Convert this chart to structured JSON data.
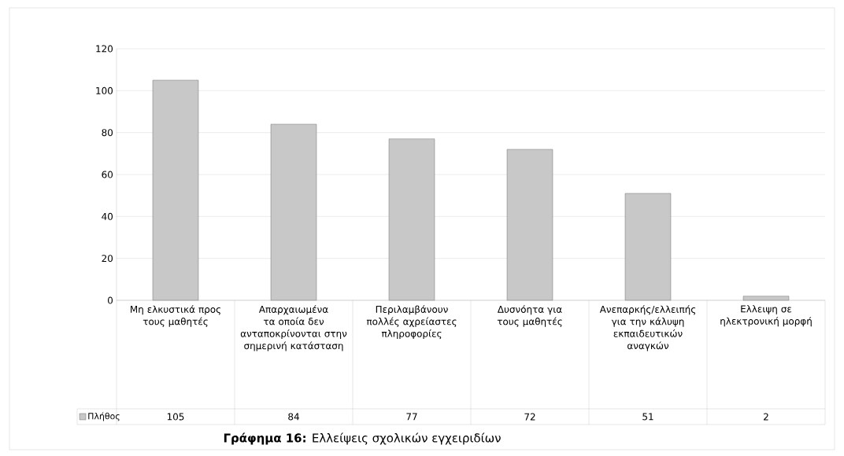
{
  "chart_data": {
    "type": "bar",
    "title": "**Γράφημα 16:** Ελλείψεις σχολικών εγχειριδίων",
    "categories": [
      "Μη ελκυστικά προς τους μαθητές",
      "Απαρχαιωμένα τα οποία δεν ανταποκρίνονται στην σημερινή κατάσταση",
      "Περιλαμβάνουν πολλές αχρείαστες πληροφορίες",
      "Δυσνόητα για τους μαθητές",
      "Ανεπαρκής/ελλειπής για την κάλυψη εκπαιδευτικών αναγκών",
      "Ελλειψη σε ηλεκτρονική μορφή"
    ],
    "series": [
      {
        "name": "Πλήθος",
        "color": "#c8c8c8",
        "values": [
          105,
          84,
          77,
          72,
          51,
          2
        ]
      }
    ],
    "data_labels": true,
    "ylim": [
      0,
      120
    ],
    "yticks": [
      0,
      20,
      40,
      60,
      80,
      100,
      120
    ],
    "grid": "y",
    "legend": "bottom left"
  }
}
